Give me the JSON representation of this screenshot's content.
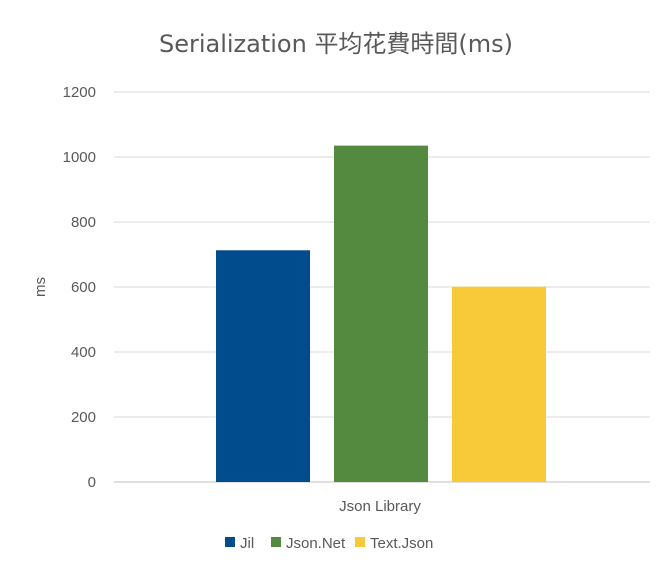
{
  "chart_data": {
    "type": "bar",
    "title": "Serialization 平均花費時間(ms)",
    "xlabel": "",
    "ylabel": "ms",
    "categories": [
      "Json Library"
    ],
    "series": [
      {
        "name": "Jil",
        "values": [
          713
        ],
        "color": "#004C8C"
      },
      {
        "name": "Json.Net",
        "values": [
          1035
        ],
        "color": "#548A3F"
      },
      {
        "name": "Text.Json",
        "values": [
          601
        ],
        "color": "#F8C939"
      }
    ],
    "ylim": [
      0,
      1200
    ],
    "yticks": [
      "0",
      "200",
      "400",
      "600",
      "800",
      "1000",
      "1200"
    ],
    "grid": true,
    "legend_position": "bottom"
  }
}
